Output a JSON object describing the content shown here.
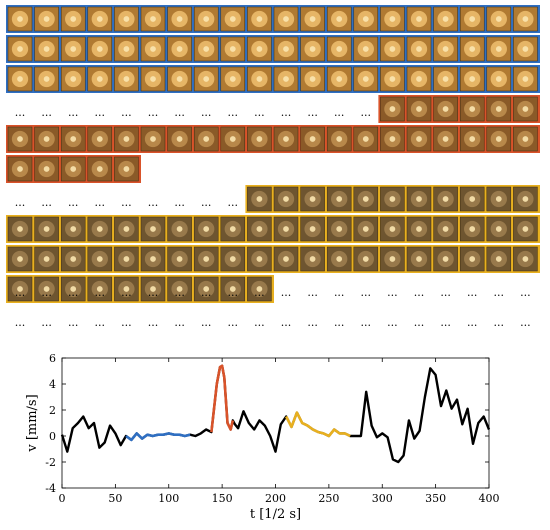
{
  "mosaic": {
    "colors": {
      "blue": "#2f6fc2",
      "red": "#d9532a",
      "yellow": "#e8b020",
      "thumb": "#9a6a2a"
    },
    "ellipsis": "..."
  },
  "chart_data": {
    "type": "line",
    "xlabel": "t [1/2 s]",
    "ylabel": "v [mm/s]",
    "xlim": [
      0,
      400
    ],
    "ylim": [
      -4,
      6
    ],
    "xticks": [
      0,
      50,
      100,
      150,
      200,
      250,
      300,
      350,
      400
    ],
    "yticks": [
      -4,
      -2,
      0,
      2,
      4,
      6
    ],
    "grid": false,
    "legend": "none",
    "colors": {
      "black": "#000000",
      "blue": "#2f6fc2",
      "orange": "#d9532a",
      "yellow": "#e8b020"
    },
    "x": [
      0,
      5,
      10,
      15,
      20,
      25,
      30,
      35,
      40,
      45,
      50,
      55,
      60,
      65,
      70,
      75,
      80,
      85,
      90,
      95,
      100,
      105,
      110,
      115,
      120,
      125,
      130,
      135,
      140,
      145,
      148,
      150,
      152,
      155,
      158,
      160,
      162,
      165,
      170,
      175,
      180,
      185,
      190,
      195,
      200,
      205,
      210,
      215,
      220,
      225,
      230,
      235,
      240,
      245,
      250,
      255,
      260,
      265,
      270,
      275,
      280,
      285,
      290,
      295,
      300,
      305,
      310,
      315,
      320,
      325,
      330,
      335,
      340,
      345,
      350,
      355,
      360,
      365,
      370,
      375,
      380,
      385,
      390,
      395,
      400
    ],
    "y": [
      0.1,
      -1.2,
      0.6,
      1.0,
      1.5,
      0.6,
      1.0,
      -0.9,
      -0.5,
      0.8,
      0.2,
      -0.7,
      0.0,
      -0.3,
      0.2,
      -0.2,
      0.1,
      0.0,
      0.1,
      0.1,
      0.2,
      0.1,
      0.1,
      0.0,
      0.1,
      0.0,
      0.2,
      0.5,
      0.3,
      4.0,
      5.3,
      5.4,
      4.5,
      1.0,
      0.5,
      1.2,
      0.9,
      0.6,
      1.9,
      1.0,
      0.5,
      1.2,
      0.8,
      0.0,
      -1.2,
      0.9,
      1.5,
      0.7,
      1.8,
      1.0,
      0.8,
      0.5,
      0.3,
      0.2,
      0.0,
      0.5,
      0.2,
      0.2,
      0.0,
      0.0,
      0.0,
      3.4,
      0.8,
      -0.1,
      0.2,
      -0.1,
      -1.8,
      -2.0,
      -1.5,
      1.2,
      -0.2,
      0.4,
      3.0,
      5.2,
      4.7,
      2.3,
      3.5,
      2.1,
      2.8,
      0.9,
      2.1,
      -0.6,
      1.0,
      1.5,
      0.5
    ],
    "colored_segments": [
      {
        "color": "blue",
        "x_start": 60,
        "x_end": 120
      },
      {
        "color": "orange",
        "x_start": 140,
        "x_end": 160
      },
      {
        "color": "yellow",
        "x_start": 210,
        "x_end": 270
      }
    ]
  }
}
